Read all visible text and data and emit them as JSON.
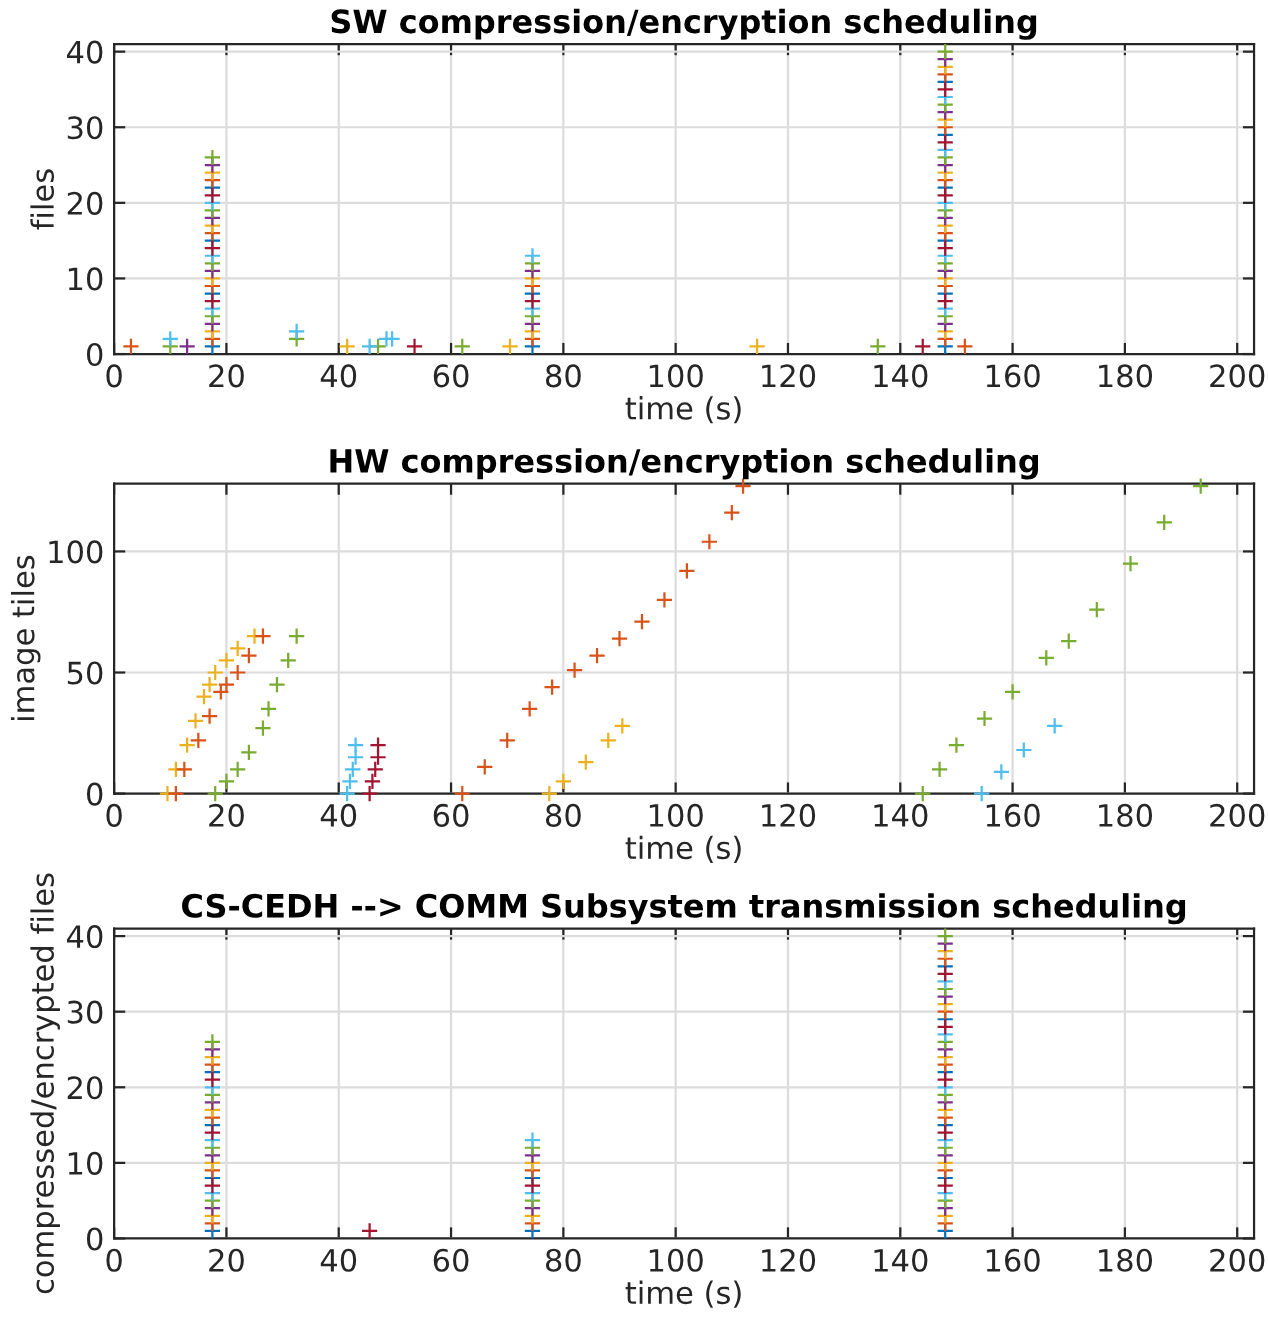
{
  "chart_data": [
    {
      "type": "scatter",
      "title": "SW compression/encryption scheduling",
      "xlabel": "time (s)",
      "ylabel": "files",
      "xlim": [
        0,
        203
      ],
      "ylim": [
        0,
        41
      ],
      "xticks": [
        0,
        20,
        40,
        60,
        80,
        100,
        120,
        140,
        160,
        180,
        200
      ],
      "yticks": [
        0,
        10,
        20,
        30,
        40
      ],
      "grid": true,
      "marker": "cross",
      "series": [
        {
          "color": "#0072bd",
          "x": [
            17.5,
            17.5,
            17.5,
            17.5,
            74.5,
            74.5,
            148,
            148,
            148,
            148,
            148,
            148
          ],
          "values": [
            1,
            8,
            15,
            22,
            1,
            8,
            1,
            8,
            15,
            22,
            29,
            36
          ]
        },
        {
          "color": "#d95319",
          "x": [
            17.5,
            17.5,
            17.5,
            17.5,
            74.5,
            74.5,
            148,
            148,
            148,
            148,
            148,
            148,
            3,
            151.5
          ],
          "values": [
            2,
            9,
            16,
            23,
            2,
            9,
            2,
            9,
            16,
            23,
            30,
            37,
            1,
            1
          ]
        },
        {
          "color": "#edb120",
          "x": [
            17.5,
            17.5,
            17.5,
            17.5,
            74.5,
            74.5,
            148,
            148,
            148,
            148,
            148,
            148,
            41.5,
            70.5,
            114.5
          ],
          "values": [
            3,
            10,
            17,
            24,
            3,
            10,
            3,
            10,
            17,
            24,
            31,
            38,
            1,
            1,
            1
          ]
        },
        {
          "color": "#7e2f8e",
          "x": [
            17.5,
            17.5,
            17.5,
            17.5,
            74.5,
            74.5,
            148,
            148,
            148,
            148,
            148,
            148,
            13
          ],
          "values": [
            4,
            11,
            18,
            25,
            4,
            11,
            4,
            11,
            18,
            25,
            32,
            39,
            1
          ]
        },
        {
          "color": "#77ac30",
          "x": [
            17.5,
            17.5,
            17.5,
            17.5,
            74.5,
            74.5,
            148,
            148,
            148,
            148,
            148,
            148,
            10,
            32.5,
            47,
            62,
            136
          ],
          "values": [
            5,
            12,
            19,
            26,
            5,
            12,
            5,
            12,
            19,
            26,
            33,
            40,
            1,
            2,
            1,
            1,
            1
          ]
        },
        {
          "color": "#4dbeee",
          "x": [
            17.5,
            17.5,
            17.5,
            74.5,
            74.5,
            148,
            148,
            148,
            148,
            148,
            10,
            32.5,
            45.5,
            48.5,
            49.5
          ],
          "values": [
            6,
            13,
            20,
            6,
            13,
            6,
            13,
            20,
            27,
            34,
            2,
            3,
            1,
            2,
            2
          ]
        },
        {
          "color": "#a2142f",
          "x": [
            17.5,
            17.5,
            17.5,
            74.5,
            148,
            148,
            148,
            148,
            148,
            53.5,
            144
          ],
          "values": [
            7,
            14,
            21,
            7,
            7,
            14,
            21,
            28,
            35,
            1,
            1
          ]
        }
      ]
    },
    {
      "type": "scatter",
      "title": "HW compression/encryption scheduling",
      "xlabel": "time (s)",
      "ylabel": "image tiles",
      "xlim": [
        0,
        203
      ],
      "ylim": [
        0,
        128
      ],
      "xticks": [
        0,
        20,
        40,
        60,
        80,
        100,
        120,
        140,
        160,
        180,
        200
      ],
      "yticks": [
        0,
        50,
        100
      ],
      "grid": true,
      "marker": "cross",
      "series": [
        {
          "color": "#edb120",
          "x": [
            9.5,
            11,
            13,
            14.5,
            16,
            17,
            18,
            20,
            22,
            25
          ],
          "values": [
            0,
            10,
            20,
            30,
            40,
            45,
            50,
            55,
            60,
            65
          ]
        },
        {
          "color": "#d95319",
          "x": [
            11,
            12.5,
            15,
            17,
            19,
            20,
            22,
            24,
            26.5
          ],
          "values": [
            0,
            10,
            22,
            32,
            42,
            45,
            50,
            57,
            65
          ]
        },
        {
          "color": "#77ac30",
          "x": [
            18,
            20,
            22,
            24,
            26.5,
            27.5,
            29,
            31,
            32.5
          ],
          "values": [
            0,
            5,
            10,
            17,
            27,
            35,
            45,
            55,
            65
          ]
        },
        {
          "color": "#4dbeee",
          "x": [
            41.5,
            42,
            42.5,
            43,
            43
          ],
          "values": [
            0,
            5,
            10,
            15,
            20
          ]
        },
        {
          "color": "#a2142f",
          "x": [
            45.5,
            46,
            46.5,
            47,
            47
          ],
          "values": [
            0,
            5,
            10,
            15,
            20
          ]
        },
        {
          "color": "#d95319",
          "x": [
            62,
            66,
            70,
            74,
            78,
            82,
            86,
            90,
            94,
            98,
            102,
            106,
            110,
            112
          ],
          "values": [
            0,
            11,
            22,
            35,
            44,
            51,
            57,
            64,
            71,
            80,
            92,
            104,
            116,
            127
          ]
        },
        {
          "color": "#edb120",
          "x": [
            77.5,
            80,
            84,
            88,
            90.5
          ],
          "values": [
            0,
            5,
            13,
            22,
            28
          ]
        },
        {
          "color": "#77ac30",
          "x": [
            144,
            147,
            150,
            155,
            160,
            166,
            170,
            175,
            181,
            187,
            193.5
          ],
          "values": [
            0,
            10,
            20,
            31,
            42,
            56,
            63,
            76,
            95,
            112,
            127
          ]
        },
        {
          "color": "#4dbeee",
          "x": [
            154.5,
            158,
            162,
            167.5
          ],
          "values": [
            0,
            9,
            18,
            28
          ]
        }
      ]
    },
    {
      "type": "scatter",
      "title": "CS-CEDH --> COMM Subsystem transmission scheduling",
      "xlabel": "time (s)",
      "ylabel": "compressed/encrypted files",
      "xlim": [
        0,
        203
      ],
      "ylim": [
        0,
        41
      ],
      "xticks": [
        0,
        20,
        40,
        60,
        80,
        100,
        120,
        140,
        160,
        180,
        200
      ],
      "yticks": [
        0,
        10,
        20,
        30,
        40
      ],
      "grid": true,
      "marker": "cross",
      "series": [
        {
          "color": "#0072bd",
          "x": [
            17.5,
            17.5,
            17.5,
            17.5,
            74.5,
            74.5,
            148,
            148,
            148,
            148,
            148,
            148
          ],
          "values": [
            1,
            8,
            15,
            22,
            1,
            8,
            1,
            8,
            15,
            22,
            29,
            36
          ]
        },
        {
          "color": "#d95319",
          "x": [
            17.5,
            17.5,
            17.5,
            17.5,
            74.5,
            74.5,
            148,
            148,
            148,
            148,
            148,
            148
          ],
          "values": [
            2,
            9,
            16,
            23,
            2,
            9,
            2,
            9,
            16,
            23,
            30,
            37
          ]
        },
        {
          "color": "#edb120",
          "x": [
            17.5,
            17.5,
            17.5,
            17.5,
            74.5,
            74.5,
            148,
            148,
            148,
            148,
            148,
            148
          ],
          "values": [
            3,
            10,
            17,
            24,
            3,
            10,
            3,
            10,
            17,
            24,
            31,
            38
          ]
        },
        {
          "color": "#7e2f8e",
          "x": [
            17.5,
            17.5,
            17.5,
            17.5,
            74.5,
            74.5,
            148,
            148,
            148,
            148,
            148,
            148
          ],
          "values": [
            4,
            11,
            18,
            25,
            4,
            11,
            4,
            11,
            18,
            25,
            32,
            39
          ]
        },
        {
          "color": "#77ac30",
          "x": [
            17.5,
            17.5,
            17.5,
            17.5,
            74.5,
            74.5,
            148,
            148,
            148,
            148,
            148,
            148
          ],
          "values": [
            5,
            12,
            19,
            26,
            5,
            12,
            5,
            12,
            19,
            26,
            33,
            40
          ]
        },
        {
          "color": "#4dbeee",
          "x": [
            17.5,
            17.5,
            17.5,
            74.5,
            74.5,
            148,
            148,
            148,
            148,
            148
          ],
          "values": [
            6,
            13,
            20,
            6,
            13,
            6,
            13,
            20,
            27,
            34
          ]
        },
        {
          "color": "#a2142f",
          "x": [
            17.5,
            17.5,
            17.5,
            74.5,
            148,
            148,
            148,
            148,
            148,
            45.5
          ],
          "values": [
            7,
            14,
            21,
            7,
            7,
            14,
            21,
            28,
            35,
            1
          ]
        }
      ]
    }
  ]
}
